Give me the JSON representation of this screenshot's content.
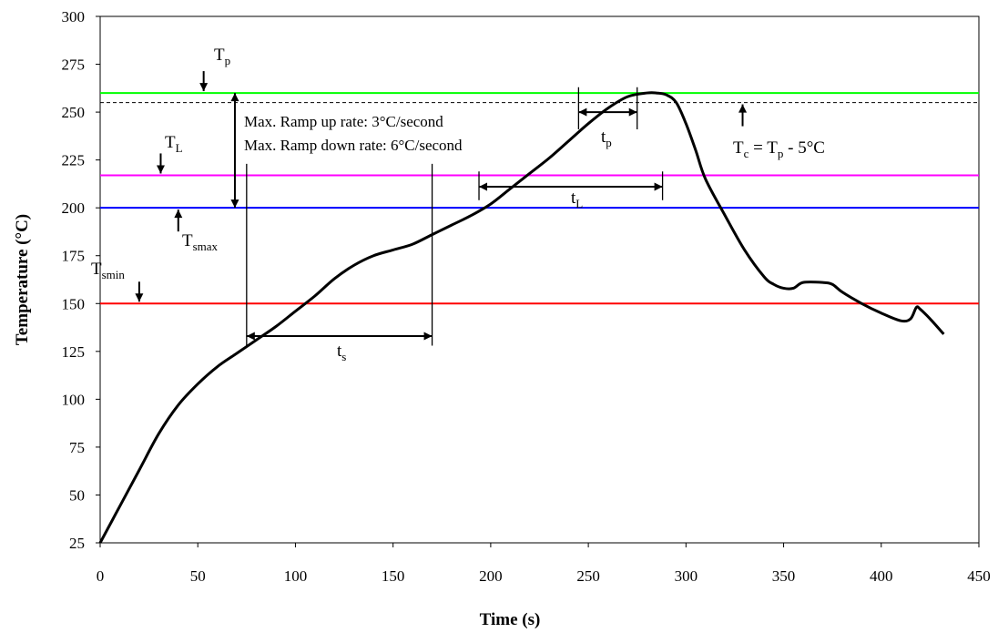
{
  "chart_data": {
    "type": "line",
    "title": "",
    "xlabel": "Time (s)",
    "ylabel": "Temperature (°C)",
    "xlim": [
      0,
      450
    ],
    "ylim": [
      25,
      300
    ],
    "x_ticks": [
      0,
      50,
      100,
      150,
      200,
      250,
      300,
      350,
      400,
      450
    ],
    "y_ticks": [
      25,
      50,
      75,
      100,
      125,
      150,
      175,
      200,
      225,
      250,
      275,
      300
    ],
    "grid": false,
    "series": [
      {
        "color": "#000000",
        "x": [
          0,
          10,
          20,
          30,
          40,
          50,
          60,
          70,
          80,
          90,
          100,
          110,
          120,
          130,
          140,
          150,
          160,
          170,
          180,
          190,
          200,
          210,
          220,
          230,
          240,
          250,
          260,
          270,
          280,
          285,
          290,
          295,
          300,
          305,
          310,
          320,
          330,
          340,
          345,
          350,
          355,
          360,
          370,
          375,
          380,
          390,
          400,
          410,
          415,
          418,
          420,
          425,
          432
        ],
        "y": [
          25,
          44,
          63,
          82,
          97,
          108,
          117,
          124,
          131,
          138,
          146,
          154,
          163,
          170,
          175,
          178,
          181,
          186,
          191,
          196,
          202,
          210,
          218,
          226,
          235,
          244,
          252,
          258,
          260,
          260,
          259,
          255,
          244,
          230,
          215,
          196,
          178,
          164,
          160,
          158,
          158,
          161,
          161,
          160,
          156,
          150,
          145,
          141,
          142,
          148,
          147,
          142,
          134
        ]
      }
    ],
    "reference_lines": [
      {
        "y": 260,
        "color": "#00ff00",
        "style": "solid"
      },
      {
        "y": 255,
        "color": "#000000",
        "style": "dashed"
      },
      {
        "y": 217,
        "color": "#ff00ff",
        "style": "solid"
      },
      {
        "y": 200,
        "color": "#0000ff",
        "style": "solid"
      },
      {
        "y": 150,
        "color": "#ff0000",
        "style": "solid"
      }
    ],
    "annotations": {
      "ramp_up": "Max. Ramp up rate: 3°C/second",
      "ramp_down": "Max. Ramp down rate: 6°C/second",
      "tp_main": "T",
      "tp_sub": "p",
      "tl_main": "T",
      "tl_sub": "L",
      "tsmax_main": "T",
      "tsmax_sub": "smax",
      "tsmin_main": "T",
      "tsmin_sub": "smin",
      "tc_main": "T",
      "tc_sub": "c",
      "tc_eq": " = T",
      "tc_eq_sub": "p",
      "tc_rest": " - 5°C",
      "ts_main": "t",
      "ts_sub": "s",
      "tL_main": "t",
      "tL_sub": "L",
      "tpp_main": "t",
      "tpp_sub": "p"
    },
    "intervals": [
      {
        "name": "ts",
        "x0": 75,
        "x1": 170,
        "y": 133
      },
      {
        "name": "tL",
        "x0": 194,
        "x1": 288,
        "y": 211
      },
      {
        "name": "tp",
        "x0": 245,
        "x1": 275,
        "y": 250
      }
    ],
    "point_markers": [
      {
        "name": "tp",
        "x": 53,
        "y": 260,
        "direction": "down"
      },
      {
        "name": "tl",
        "x": 31,
        "y": 217,
        "direction": "down"
      },
      {
        "name": "tsmax",
        "x": 40,
        "y": 200,
        "direction": "up"
      },
      {
        "name": "tsmin",
        "x": 20,
        "y": 150,
        "direction": "down"
      },
      {
        "name": "tc",
        "x": 329,
        "y": 255,
        "direction": "up"
      }
    ],
    "ramp_arrow": {
      "x": 69,
      "y0": 200,
      "y1": 260
    }
  }
}
